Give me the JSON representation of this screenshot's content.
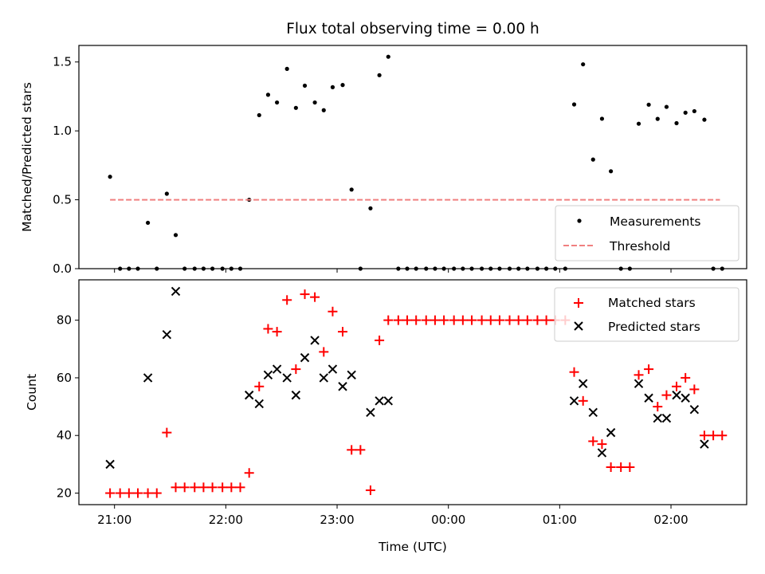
{
  "chart_data": {
    "type": "scatter",
    "title": "Flux total observing time = 0.00 h",
    "xlabel": "Time (UTC)",
    "x_unit": "hours since 21:00 UTC",
    "xlim": [
      -0.32,
      5.68
    ],
    "x_ticks": [
      {
        "x": 0,
        "label": "21:00"
      },
      {
        "x": 1,
        "label": "22:00"
      },
      {
        "x": 2,
        "label": "23:00"
      },
      {
        "x": 3,
        "label": "00:00"
      },
      {
        "x": 4,
        "label": "01:00"
      },
      {
        "x": 5,
        "label": "02:00"
      }
    ],
    "top_panel": {
      "ylabel": "Matched/Predicted stars",
      "ylim": [
        0,
        1.62
      ],
      "y_ticks": [
        {
          "y": 0.0,
          "label": "0.0"
        },
        {
          "y": 0.5,
          "label": "0.5"
        },
        {
          "y": 1.0,
          "label": "1.0"
        },
        {
          "y": 1.5,
          "label": "1.5"
        }
      ],
      "legend": {
        "position": "lower right",
        "entries": [
          "Measurements",
          "Threshold"
        ]
      },
      "series": [
        {
          "name": "Measurements",
          "marker": "dot",
          "color": "#000000",
          "points": [
            [
              -0.04,
              0.667
            ],
            [
              0.05,
              0
            ],
            [
              0.13,
              0
            ],
            [
              0.21,
              0
            ],
            [
              0.3,
              0.333
            ],
            [
              0.38,
              0
            ],
            [
              0.47,
              0.544
            ],
            [
              0.55,
              0.244
            ],
            [
              0.63,
              0
            ],
            [
              0.72,
              0
            ],
            [
              0.8,
              0
            ],
            [
              0.88,
              0
            ],
            [
              0.97,
              0
            ],
            [
              1.05,
              0
            ],
            [
              1.13,
              0
            ],
            [
              1.21,
              0.5
            ],
            [
              1.3,
              1.114
            ],
            [
              1.38,
              1.262
            ],
            [
              1.46,
              1.206
            ],
            [
              1.55,
              1.45
            ],
            [
              1.63,
              1.167
            ],
            [
              1.71,
              1.328
            ],
            [
              1.8,
              1.206
            ],
            [
              1.88,
              1.15
            ],
            [
              1.96,
              1.317
            ],
            [
              2.05,
              1.333
            ],
            [
              2.13,
              0.574
            ],
            [
              2.21,
              0
            ],
            [
              2.3,
              0.438
            ],
            [
              2.38,
              1.404
            ],
            [
              2.46,
              1.538
            ],
            [
              2.55,
              0
            ],
            [
              2.63,
              0
            ],
            [
              2.71,
              0
            ],
            [
              2.8,
              0
            ],
            [
              2.88,
              0
            ],
            [
              2.96,
              0
            ],
            [
              3.05,
              0
            ],
            [
              3.13,
              0
            ],
            [
              3.21,
              0
            ],
            [
              3.3,
              0
            ],
            [
              3.38,
              0
            ],
            [
              3.46,
              0
            ],
            [
              3.55,
              0
            ],
            [
              3.63,
              0
            ],
            [
              3.71,
              0
            ],
            [
              3.8,
              0
            ],
            [
              3.88,
              0
            ],
            [
              3.96,
              0
            ],
            [
              4.05,
              0
            ],
            [
              4.13,
              1.192
            ],
            [
              4.21,
              1.483
            ],
            [
              4.3,
              0.792
            ],
            [
              4.38,
              1.088
            ],
            [
              4.46,
              0.707
            ],
            [
              4.55,
              0
            ],
            [
              4.63,
              0
            ],
            [
              4.71,
              1.052
            ],
            [
              4.8,
              1.19
            ],
            [
              4.88,
              1.087
            ],
            [
              4.96,
              1.174
            ],
            [
              5.05,
              1.056
            ],
            [
              5.13,
              1.132
            ],
            [
              5.21,
              1.143
            ],
            [
              5.3,
              1.081
            ],
            [
              5.38,
              0
            ],
            [
              5.46,
              0
            ]
          ]
        },
        {
          "name": "Threshold",
          "style": "dashed",
          "color": "#f08080",
          "points": [
            [
              -0.04,
              0.5
            ],
            [
              5.44,
              0.5
            ]
          ]
        }
      ]
    },
    "bottom_panel": {
      "ylabel": "Count",
      "ylim": [
        16,
        94
      ],
      "y_ticks": [
        {
          "y": 20,
          "label": "20"
        },
        {
          "y": 40,
          "label": "40"
        },
        {
          "y": 60,
          "label": "60"
        },
        {
          "y": 80,
          "label": "80"
        }
      ],
      "legend": {
        "position": "upper right",
        "entries": [
          "Matched stars",
          "Predicted stars"
        ]
      },
      "series": [
        {
          "name": "Matched stars",
          "marker": "plus",
          "color": "#ff0000",
          "points": [
            [
              -0.04,
              20
            ],
            [
              0.05,
              20
            ],
            [
              0.13,
              20
            ],
            [
              0.21,
              20
            ],
            [
              0.3,
              20
            ],
            [
              0.38,
              20
            ],
            [
              0.47,
              41
            ],
            [
              0.55,
              22
            ],
            [
              0.63,
              22
            ],
            [
              0.72,
              22
            ],
            [
              0.8,
              22
            ],
            [
              0.88,
              22
            ],
            [
              0.97,
              22
            ],
            [
              1.05,
              22
            ],
            [
              1.13,
              22
            ],
            [
              1.21,
              27
            ],
            [
              1.3,
              57
            ],
            [
              1.38,
              77
            ],
            [
              1.46,
              76
            ],
            [
              1.55,
              87
            ],
            [
              1.63,
              63
            ],
            [
              1.71,
              89
            ],
            [
              1.8,
              88
            ],
            [
              1.88,
              69
            ],
            [
              1.96,
              83
            ],
            [
              2.05,
              76
            ],
            [
              2.13,
              35
            ],
            [
              2.21,
              35
            ],
            [
              2.3,
              21
            ],
            [
              2.38,
              73
            ],
            [
              2.46,
              80
            ],
            [
              2.55,
              80
            ],
            [
              2.63,
              80
            ],
            [
              2.71,
              80
            ],
            [
              2.8,
              80
            ],
            [
              2.88,
              80
            ],
            [
              2.96,
              80
            ],
            [
              3.05,
              80
            ],
            [
              3.13,
              80
            ],
            [
              3.21,
              80
            ],
            [
              3.3,
              80
            ],
            [
              3.38,
              80
            ],
            [
              3.46,
              80
            ],
            [
              3.55,
              80
            ],
            [
              3.63,
              80
            ],
            [
              3.71,
              80
            ],
            [
              3.8,
              80
            ],
            [
              3.88,
              80
            ],
            [
              3.96,
              80
            ],
            [
              4.05,
              80
            ],
            [
              4.13,
              62
            ],
            [
              4.21,
              52
            ],
            [
              4.3,
              38
            ],
            [
              4.38,
              37
            ],
            [
              4.46,
              29
            ],
            [
              4.55,
              29
            ],
            [
              4.63,
              29
            ],
            [
              4.71,
              61
            ],
            [
              4.8,
              63
            ],
            [
              4.88,
              50
            ],
            [
              4.96,
              54
            ],
            [
              5.05,
              57
            ],
            [
              5.13,
              60
            ],
            [
              5.21,
              56
            ],
            [
              5.3,
              40
            ],
            [
              5.38,
              40
            ],
            [
              5.46,
              40
            ]
          ]
        },
        {
          "name": "Predicted stars",
          "marker": "x",
          "color": "#000000",
          "points": [
            [
              -0.04,
              30
            ],
            [
              0.3,
              60
            ],
            [
              0.47,
              75
            ],
            [
              0.55,
              90
            ],
            [
              1.21,
              54
            ],
            [
              1.3,
              51
            ],
            [
              1.38,
              61
            ],
            [
              1.46,
              63
            ],
            [
              1.55,
              60
            ],
            [
              1.63,
              54
            ],
            [
              1.71,
              67
            ],
            [
              1.8,
              73
            ],
            [
              1.88,
              60
            ],
            [
              1.96,
              63
            ],
            [
              2.05,
              57
            ],
            [
              2.13,
              61
            ],
            [
              2.3,
              48
            ],
            [
              2.38,
              52
            ],
            [
              2.46,
              52
            ],
            [
              4.13,
              52
            ],
            [
              4.21,
              58
            ],
            [
              4.3,
              48
            ],
            [
              4.38,
              34
            ],
            [
              4.46,
              41
            ],
            [
              4.71,
              58
            ],
            [
              4.8,
              53
            ],
            [
              4.88,
              46
            ],
            [
              4.96,
              46
            ],
            [
              5.05,
              54
            ],
            [
              5.13,
              53
            ],
            [
              5.21,
              49
            ],
            [
              5.3,
              37
            ]
          ]
        }
      ]
    }
  }
}
